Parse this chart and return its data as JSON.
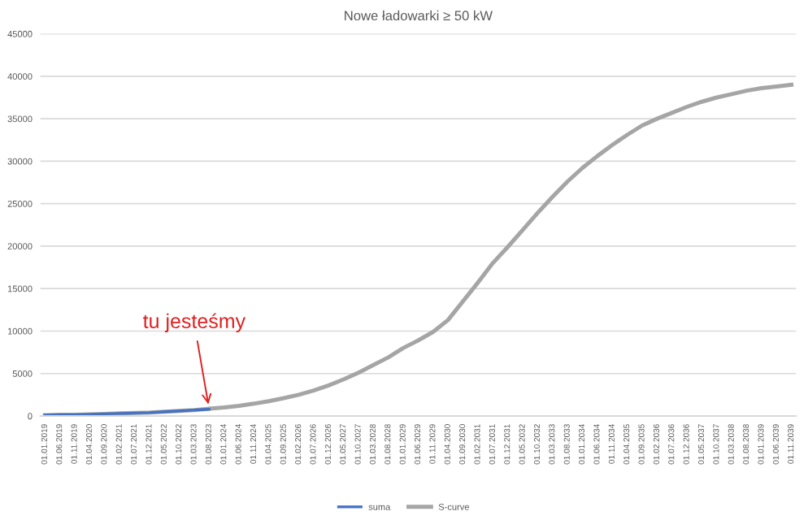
{
  "chart_data": {
    "type": "line",
    "title": "Nowe ładowarki ≥ 50 kW",
    "categories": [
      "01.01.2019",
      "01.06.2019",
      "01.11.2019",
      "01.04.2020",
      "01.09.2020",
      "01.02.2021",
      "01.07.2021",
      "01.12.2021",
      "01.05.2022",
      "01.10.2022",
      "01.03.2023",
      "01.08.2023",
      "01.01.2024",
      "01.06.2024",
      "01.11.2024",
      "01.04.2025",
      "01.09.2025",
      "01.02.2026",
      "01.07.2026",
      "01.12.2026",
      "01.05.2027",
      "01.10.2027",
      "01.03.2028",
      "01.08.2028",
      "01.01.2029",
      "01.06.2029",
      "01.11.2029",
      "01.04.2030",
      "01.09.2030",
      "01.02.2031",
      "01.07.2031",
      "01.12.2031",
      "01.05.2032",
      "01.10.2032",
      "01.03.2033",
      "01.08.2033",
      "01.01.2034",
      "01.06.2034",
      "01.11.2034",
      "01.04.2035",
      "01.09.2035",
      "01.02.2036",
      "01.07.2036",
      "01.12.2036",
      "01.05.2037",
      "01.10.2037",
      "01.03.2038",
      "01.08.2038",
      "01.01.2039",
      "01.06.2039",
      "01.11.2039"
    ],
    "series": [
      {
        "name": "suma",
        "color": "#4472c4",
        "values": [
          100,
          150,
          150,
          200,
          250,
          300,
          350,
          400,
          500,
          600,
          700,
          800,
          null,
          null,
          null,
          null,
          null,
          null,
          null,
          null,
          null,
          null,
          null,
          null,
          null,
          null,
          null,
          null,
          null,
          null,
          null,
          null,
          null,
          null,
          null,
          null,
          null,
          null,
          null,
          null,
          null,
          null,
          null,
          null,
          null,
          null,
          null,
          null,
          null,
          null,
          null
        ]
      },
      {
        "name": "S-curve",
        "color": "#a5a5a5",
        "values": [
          100,
          150,
          150,
          200,
          250,
          300,
          350,
          400,
          500,
          600,
          700,
          850,
          1000,
          1200,
          1450,
          1750,
          2100,
          2500,
          3000,
          3600,
          4300,
          5100,
          6000,
          6900,
          8000,
          8900,
          9900,
          11300,
          13500,
          15700,
          18000,
          19900,
          21900,
          23900,
          25800,
          27600,
          29200,
          30600,
          31900,
          33100,
          34200,
          35000,
          35700,
          36400,
          37000,
          37500,
          37900,
          38300,
          38600,
          38800,
          39000
        ]
      }
    ],
    "ylim": [
      0,
      45000
    ],
    "yticks": [
      0,
      5000,
      10000,
      15000,
      20000,
      25000,
      30000,
      35000,
      40000,
      45000
    ],
    "grid": "y",
    "legend": "bottom",
    "marker": "none",
    "line_style": "solid",
    "annotations": [
      {
        "text": "tu jesteśmy",
        "x": "01.08.2023",
        "y": 850
      }
    ]
  }
}
